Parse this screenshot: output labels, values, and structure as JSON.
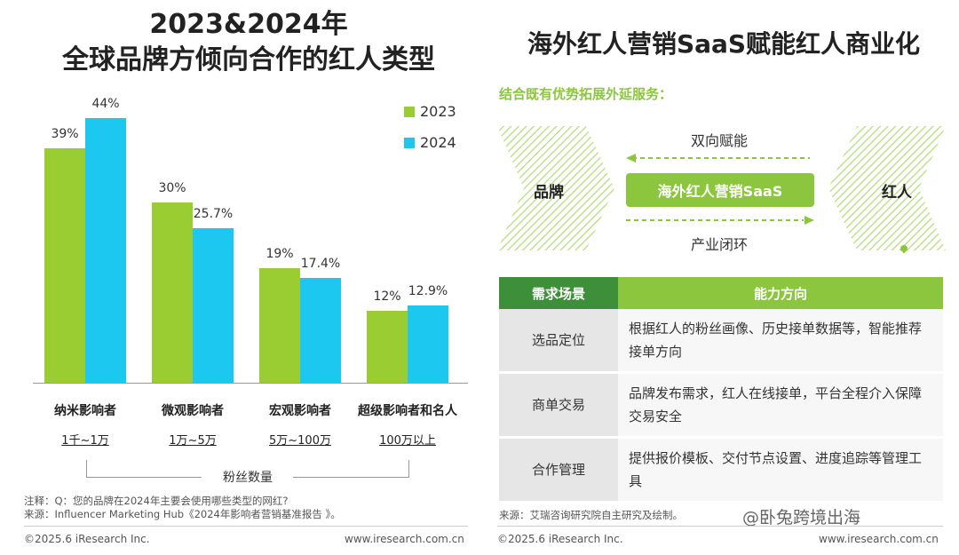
{
  "left": {
    "title_line1": "2023&2024年",
    "title_line2": "全球品牌方倾向合作的红人类型",
    "axis_group_label": "粉丝数量",
    "note": "注释：Q：您的品牌在2024年主要会使用哪些类型的网红?",
    "source": "来源：Influencer Marketing Hub《2024年影响者营销基准报告 》。",
    "footer_left": "©2025.6 iResearch Inc.",
    "footer_right": "www.iresearch.com.cn"
  },
  "chart_data": {
    "type": "bar",
    "categories": [
      "纳米影响者",
      "微观影响者",
      "宏观影响者",
      "超级影响者和名人"
    ],
    "category_ranges": [
      "1千~1万",
      "1万~5万",
      "5万~100万",
      "100万以上"
    ],
    "series": [
      {
        "name": "2023",
        "values": [
          39,
          30,
          19,
          12
        ],
        "labels": [
          "39%",
          "30%",
          "19%",
          "12%"
        ],
        "color": "#9ACD32"
      },
      {
        "name": "2024",
        "values": [
          44,
          25.7,
          17.4,
          12.9
        ],
        "labels": [
          "44%",
          "25.7%",
          "17.4%",
          "12.9%"
        ],
        "color": "#1CC7F0"
      }
    ],
    "ylim": [
      0,
      44
    ],
    "legend_position": "top-right",
    "grid": false
  },
  "right": {
    "title": "海外红人营销SaaS赋能红人商业化",
    "subtitle": "结合既有优势拓展外延服务：",
    "brand_label": "品牌",
    "kol_label": "红人",
    "center_label": "海外红人营销SaaS",
    "top_flow": "双向赋能",
    "bottom_flow": "产业闭环",
    "table_header_1": "需求场景",
    "table_header_2": "能力方向",
    "rows": [
      {
        "scene": "选品定位",
        "desc": "根据红人的粉丝画像、历史接单数据等，智能推荐接单方向"
      },
      {
        "scene": "商单交易",
        "desc": "品牌发布需求，红人在线接单，平台全程介入保障交易安全"
      },
      {
        "scene": "合作管理",
        "desc": "提供报价模板、交付节点设置、进度追踪等管理工具"
      }
    ],
    "source": "来源：艾瑞咨询研究院自主研究及绘制。",
    "watermark": "@卧兔跨境出海",
    "footer_left": "©2025.6 iResearch Inc.",
    "footer_right": "www.iresearch.com.cn"
  },
  "colors": {
    "green": "#8CC63F",
    "dark_green": "#3E8F3A",
    "cyan": "#1CC7F0",
    "bar_green": "#9ACD32"
  }
}
